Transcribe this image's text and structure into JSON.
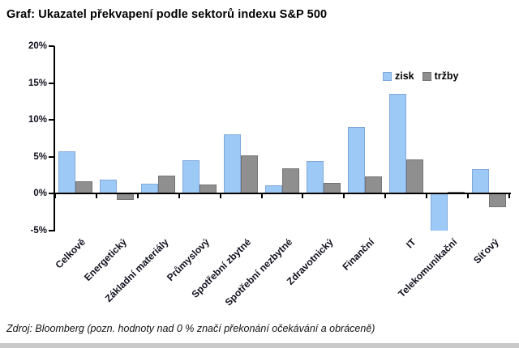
{
  "page": {
    "title": "Graf: Ukazatel překvapení podle sektorů indexu S&P 500",
    "source_note": "Zdroj: Bloomberg (pozn. hodnoty nad 0 % značí překonání očekávání a obráceně)"
  },
  "colors": {
    "zisk_fill": "#9DC9F7",
    "zisk_border": "#7FA8D9",
    "trzby_fill": "#8F8F8F",
    "trzby_border": "#747474",
    "axis": "#000000",
    "label_text": "#10101e"
  },
  "chart_data": {
    "type": "bar",
    "title": "Graf: Ukazatel překvapení podle sektorů indexu S&P 500",
    "categories": [
      "Celkově",
      "Energetický",
      "Základní materiály",
      "Průmyslový",
      "Spotřební zbytné",
      "Spotřební nezbytné",
      "Zdravotnický",
      "Finanční",
      "IT",
      "Telekomunikační",
      "Síťový"
    ],
    "series": [
      {
        "name": "zisk",
        "color": "#9DC9F7",
        "values": [
          5.7,
          1.9,
          1.4,
          4.5,
          8.1,
          1.1,
          4.4,
          9.0,
          13.5,
          -5.4,
          3.3
        ]
      },
      {
        "name": "tržby",
        "color": "#8F8F8F",
        "values": [
          1.7,
          -0.8,
          2.5,
          1.3,
          5.2,
          3.4,
          1.5,
          2.3,
          4.6,
          0.3,
          -1.8
        ]
      }
    ],
    "xlabel": "",
    "ylabel": "",
    "ylim": [
      -5,
      20
    ],
    "ytick_step": 5,
    "ytick_labels": [
      "20%",
      "15%",
      "10%",
      "5%",
      "0%",
      "-5%"
    ],
    "grid": false,
    "legend_position": "top-right",
    "note": "hodnoty nad 0 % značí překonání očekávání a obráceně"
  }
}
